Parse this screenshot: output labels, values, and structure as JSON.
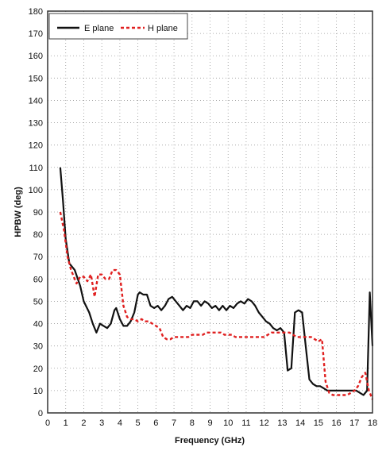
{
  "chart_data": {
    "type": "line",
    "title": "",
    "xlabel": "Frequency (GHz)",
    "ylabel": "HPBW (deg)",
    "xlim": [
      0,
      18
    ],
    "ylim": [
      0,
      180
    ],
    "x_ticks": [
      0,
      1,
      2,
      3,
      4,
      5,
      6,
      7,
      8,
      9,
      10,
      11,
      12,
      13,
      14,
      15,
      16,
      17,
      18
    ],
    "y_ticks": [
      0,
      10,
      20,
      30,
      40,
      50,
      60,
      70,
      80,
      90,
      100,
      110,
      120,
      130,
      140,
      150,
      160,
      170,
      180
    ],
    "grid": true,
    "legend_position": "top-left",
    "series": [
      {
        "name": "E plane",
        "style": "solid",
        "color": "#111111",
        "x": [
          0.7,
          0.85,
          1.0,
          1.2,
          1.5,
          1.8,
          2.0,
          2.3,
          2.5,
          2.7,
          2.9,
          3.1,
          3.3,
          3.5,
          3.7,
          3.8,
          4.0,
          4.2,
          4.4,
          4.6,
          4.8,
          5.0,
          5.1,
          5.3,
          5.5,
          5.7,
          5.9,
          6.1,
          6.3,
          6.5,
          6.7,
          6.9,
          7.1,
          7.3,
          7.5,
          7.7,
          7.9,
          8.1,
          8.3,
          8.5,
          8.7,
          8.9,
          9.1,
          9.3,
          9.5,
          9.7,
          9.9,
          10.1,
          10.3,
          10.5,
          10.7,
          10.9,
          11.1,
          11.3,
          11.5,
          11.7,
          11.9,
          12.1,
          12.3,
          12.5,
          12.7,
          12.9,
          13.1,
          13.3,
          13.5,
          13.7,
          13.9,
          14.1,
          14.3,
          14.5,
          14.7,
          14.9,
          15.1,
          15.3,
          15.5,
          15.7,
          15.9,
          16.1,
          16.3,
          16.5,
          16.7,
          16.9,
          17.1,
          17.3,
          17.5,
          17.7,
          17.85,
          18.0
        ],
        "y": [
          110,
          95,
          78,
          67,
          64,
          57,
          50,
          45,
          40,
          36,
          40,
          39,
          38,
          40,
          46,
          47,
          42,
          39,
          39,
          41,
          45,
          53,
          54,
          53,
          53,
          48,
          47,
          48,
          46,
          48,
          51,
          52,
          50,
          48,
          46,
          48,
          47,
          50,
          50,
          48,
          50,
          49,
          47,
          48,
          46,
          48,
          46,
          48,
          47,
          49,
          50,
          49,
          51,
          50,
          48,
          45,
          43,
          41,
          40,
          38,
          37,
          38,
          36,
          19,
          20,
          45,
          46,
          45,
          30,
          15,
          13,
          12,
          12,
          11,
          10,
          10,
          10,
          10,
          10,
          10,
          10,
          10,
          10,
          9,
          8,
          10,
          54,
          30
        ]
      },
      {
        "name": "H plane",
        "style": "dashed",
        "color": "#e02020",
        "x": [
          0.7,
          0.9,
          1.1,
          1.3,
          1.6,
          1.8,
          2.0,
          2.2,
          2.4,
          2.6,
          2.8,
          3.0,
          3.2,
          3.4,
          3.6,
          3.8,
          4.0,
          4.2,
          4.4,
          4.6,
          4.8,
          5.0,
          5.2,
          5.4,
          5.6,
          5.8,
          6.0,
          6.2,
          6.4,
          6.6,
          6.8,
          7.0,
          7.2,
          7.4,
          7.6,
          7.8,
          8.0,
          8.2,
          8.4,
          8.6,
          8.8,
          9.0,
          9.2,
          9.4,
          9.6,
          9.8,
          10.0,
          10.2,
          10.4,
          10.6,
          10.8,
          11.0,
          11.2,
          11.4,
          11.6,
          11.8,
          12.0,
          12.2,
          12.4,
          12.6,
          12.8,
          13.0,
          13.2,
          13.4,
          13.6,
          13.8,
          14.0,
          14.2,
          14.4,
          14.6,
          14.8,
          15.0,
          15.2,
          15.4,
          15.6,
          15.8,
          16.0,
          16.2,
          16.4,
          16.6,
          16.8,
          17.0,
          17.2,
          17.4,
          17.6,
          17.8,
          18.0
        ],
        "y": [
          90,
          82,
          70,
          64,
          58,
          61,
          61,
          59,
          62,
          52,
          62,
          62,
          60,
          60,
          64,
          64,
          62,
          48,
          43,
          42,
          42,
          41,
          42,
          41,
          41,
          40,
          39,
          38,
          34,
          33,
          33,
          34,
          34,
          34,
          34,
          34,
          35,
          35,
          35,
          35,
          36,
          36,
          36,
          36,
          36,
          35,
          35,
          35,
          34,
          34,
          34,
          34,
          34,
          34,
          34,
          34,
          34,
          35,
          36,
          36,
          36,
          36,
          36,
          36,
          35,
          34,
          34,
          34,
          34,
          34,
          33,
          32,
          33,
          14,
          9,
          8,
          8,
          8,
          8,
          8,
          9,
          10,
          12,
          16,
          18,
          10,
          6
        ]
      }
    ]
  }
}
